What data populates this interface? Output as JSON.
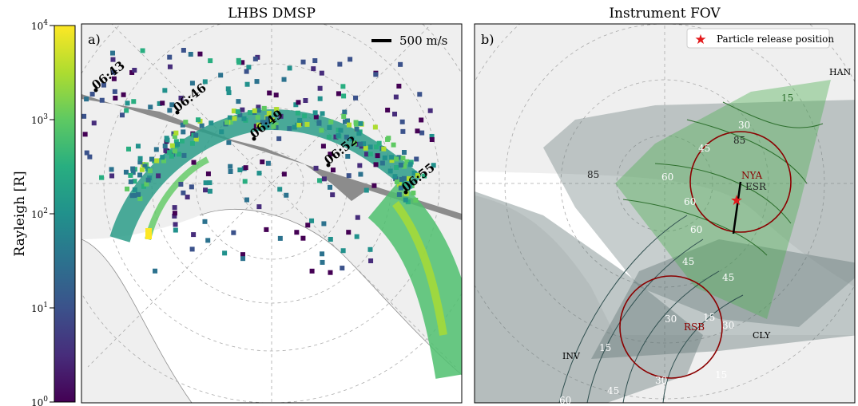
{
  "colorbar": {
    "label": "Rayleigh [R]",
    "ticks": [
      {
        "base": "10",
        "exp": "4",
        "value": 10000
      },
      {
        "base": "10",
        "exp": "3",
        "value": 1000
      },
      {
        "base": "10",
        "exp": "2",
        "value": 100
      },
      {
        "base": "10",
        "exp": "1",
        "value": 10
      },
      {
        "base": "10",
        "exp": "0",
        "value": 1
      }
    ],
    "colors": [
      "#440154",
      "#472d7b",
      "#3b528b",
      "#2c728e",
      "#21918c",
      "#28ae80",
      "#5ec962",
      "#addc30",
      "#fde725"
    ]
  },
  "panel_a": {
    "title": "LHBS DMSP",
    "label": "a)",
    "scale_label": "500 m/s",
    "time_markers": [
      "06:43",
      "06:46",
      "06:49",
      "06:52",
      "06:55"
    ]
  },
  "panel_b": {
    "title": "Instrument FOV",
    "label": "b)",
    "legend": "Particle release position",
    "stations": [
      "HAN",
      "NYA",
      "ESR",
      "RSB",
      "CLY",
      "INV"
    ],
    "contour_labels": [
      "15",
      "30",
      "45",
      "60",
      "85",
      "85",
      "60",
      "60",
      "45",
      "45",
      "30",
      "15",
      "15",
      "30",
      "15",
      "30",
      "45",
      "60"
    ]
  },
  "chart_data": [
    {
      "type": "heatmap",
      "title": "LHBS DMSP",
      "panel": "a)",
      "colorbar_label": "Rayleigh [R]",
      "colorbar_scale": "log",
      "colorbar_range": [
        1,
        10000
      ],
      "annotations": [
        "06:43",
        "06:46",
        "06:49",
        "06:52",
        "06:55"
      ],
      "scale_bar": "500 m/s"
    },
    {
      "type": "map",
      "title": "Instrument FOV",
      "panel": "b)",
      "legend": [
        "Particle release position"
      ],
      "legend_position": "top-right",
      "stations": [
        "HAN",
        "NYA",
        "ESR",
        "RSB",
        "CLY",
        "INV"
      ]
    }
  ]
}
